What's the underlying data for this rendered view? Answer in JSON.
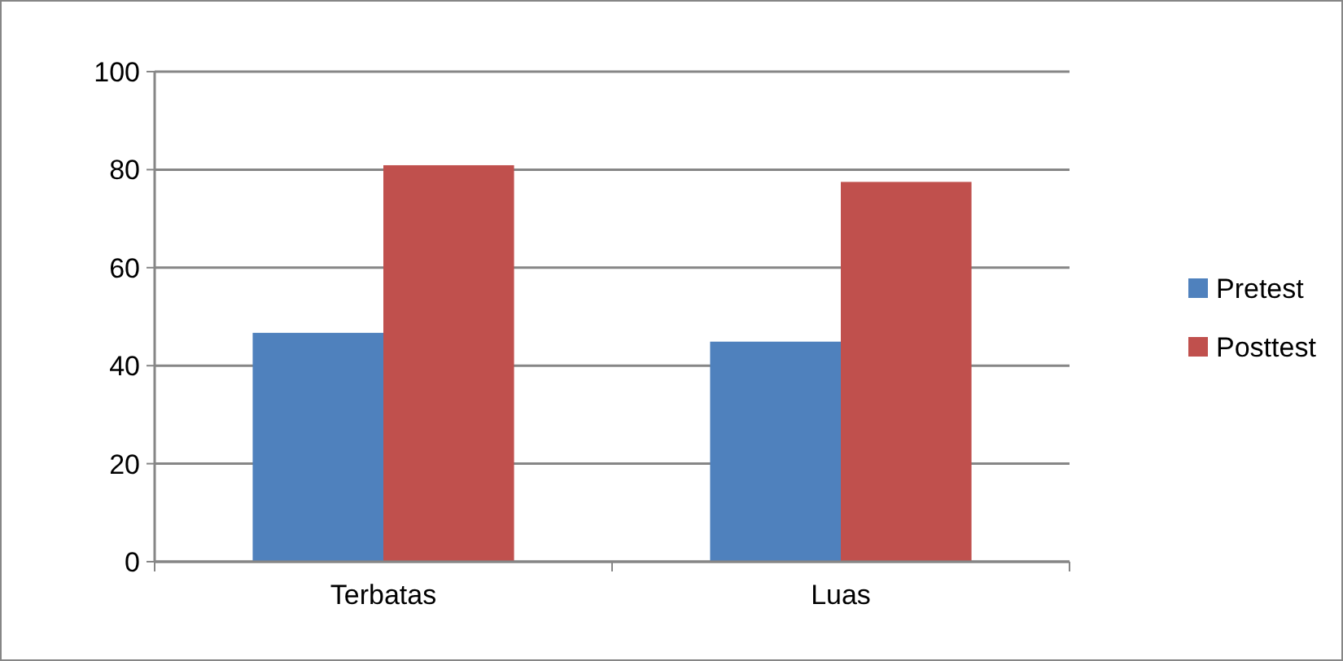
{
  "chart_data": {
    "type": "bar",
    "categories": [
      "Terbatas",
      "Luas"
    ],
    "series": [
      {
        "name": "Pretest",
        "color": "#4f81bd",
        "values": [
          46.7,
          44.9
        ]
      },
      {
        "name": "Posttest",
        "color": "#c0504d",
        "values": [
          80.9,
          77.5
        ]
      }
    ],
    "ylim": [
      0,
      100
    ],
    "yticks": [
      0,
      20,
      40,
      60,
      80,
      100
    ],
    "grid": "y",
    "legend": "right"
  }
}
